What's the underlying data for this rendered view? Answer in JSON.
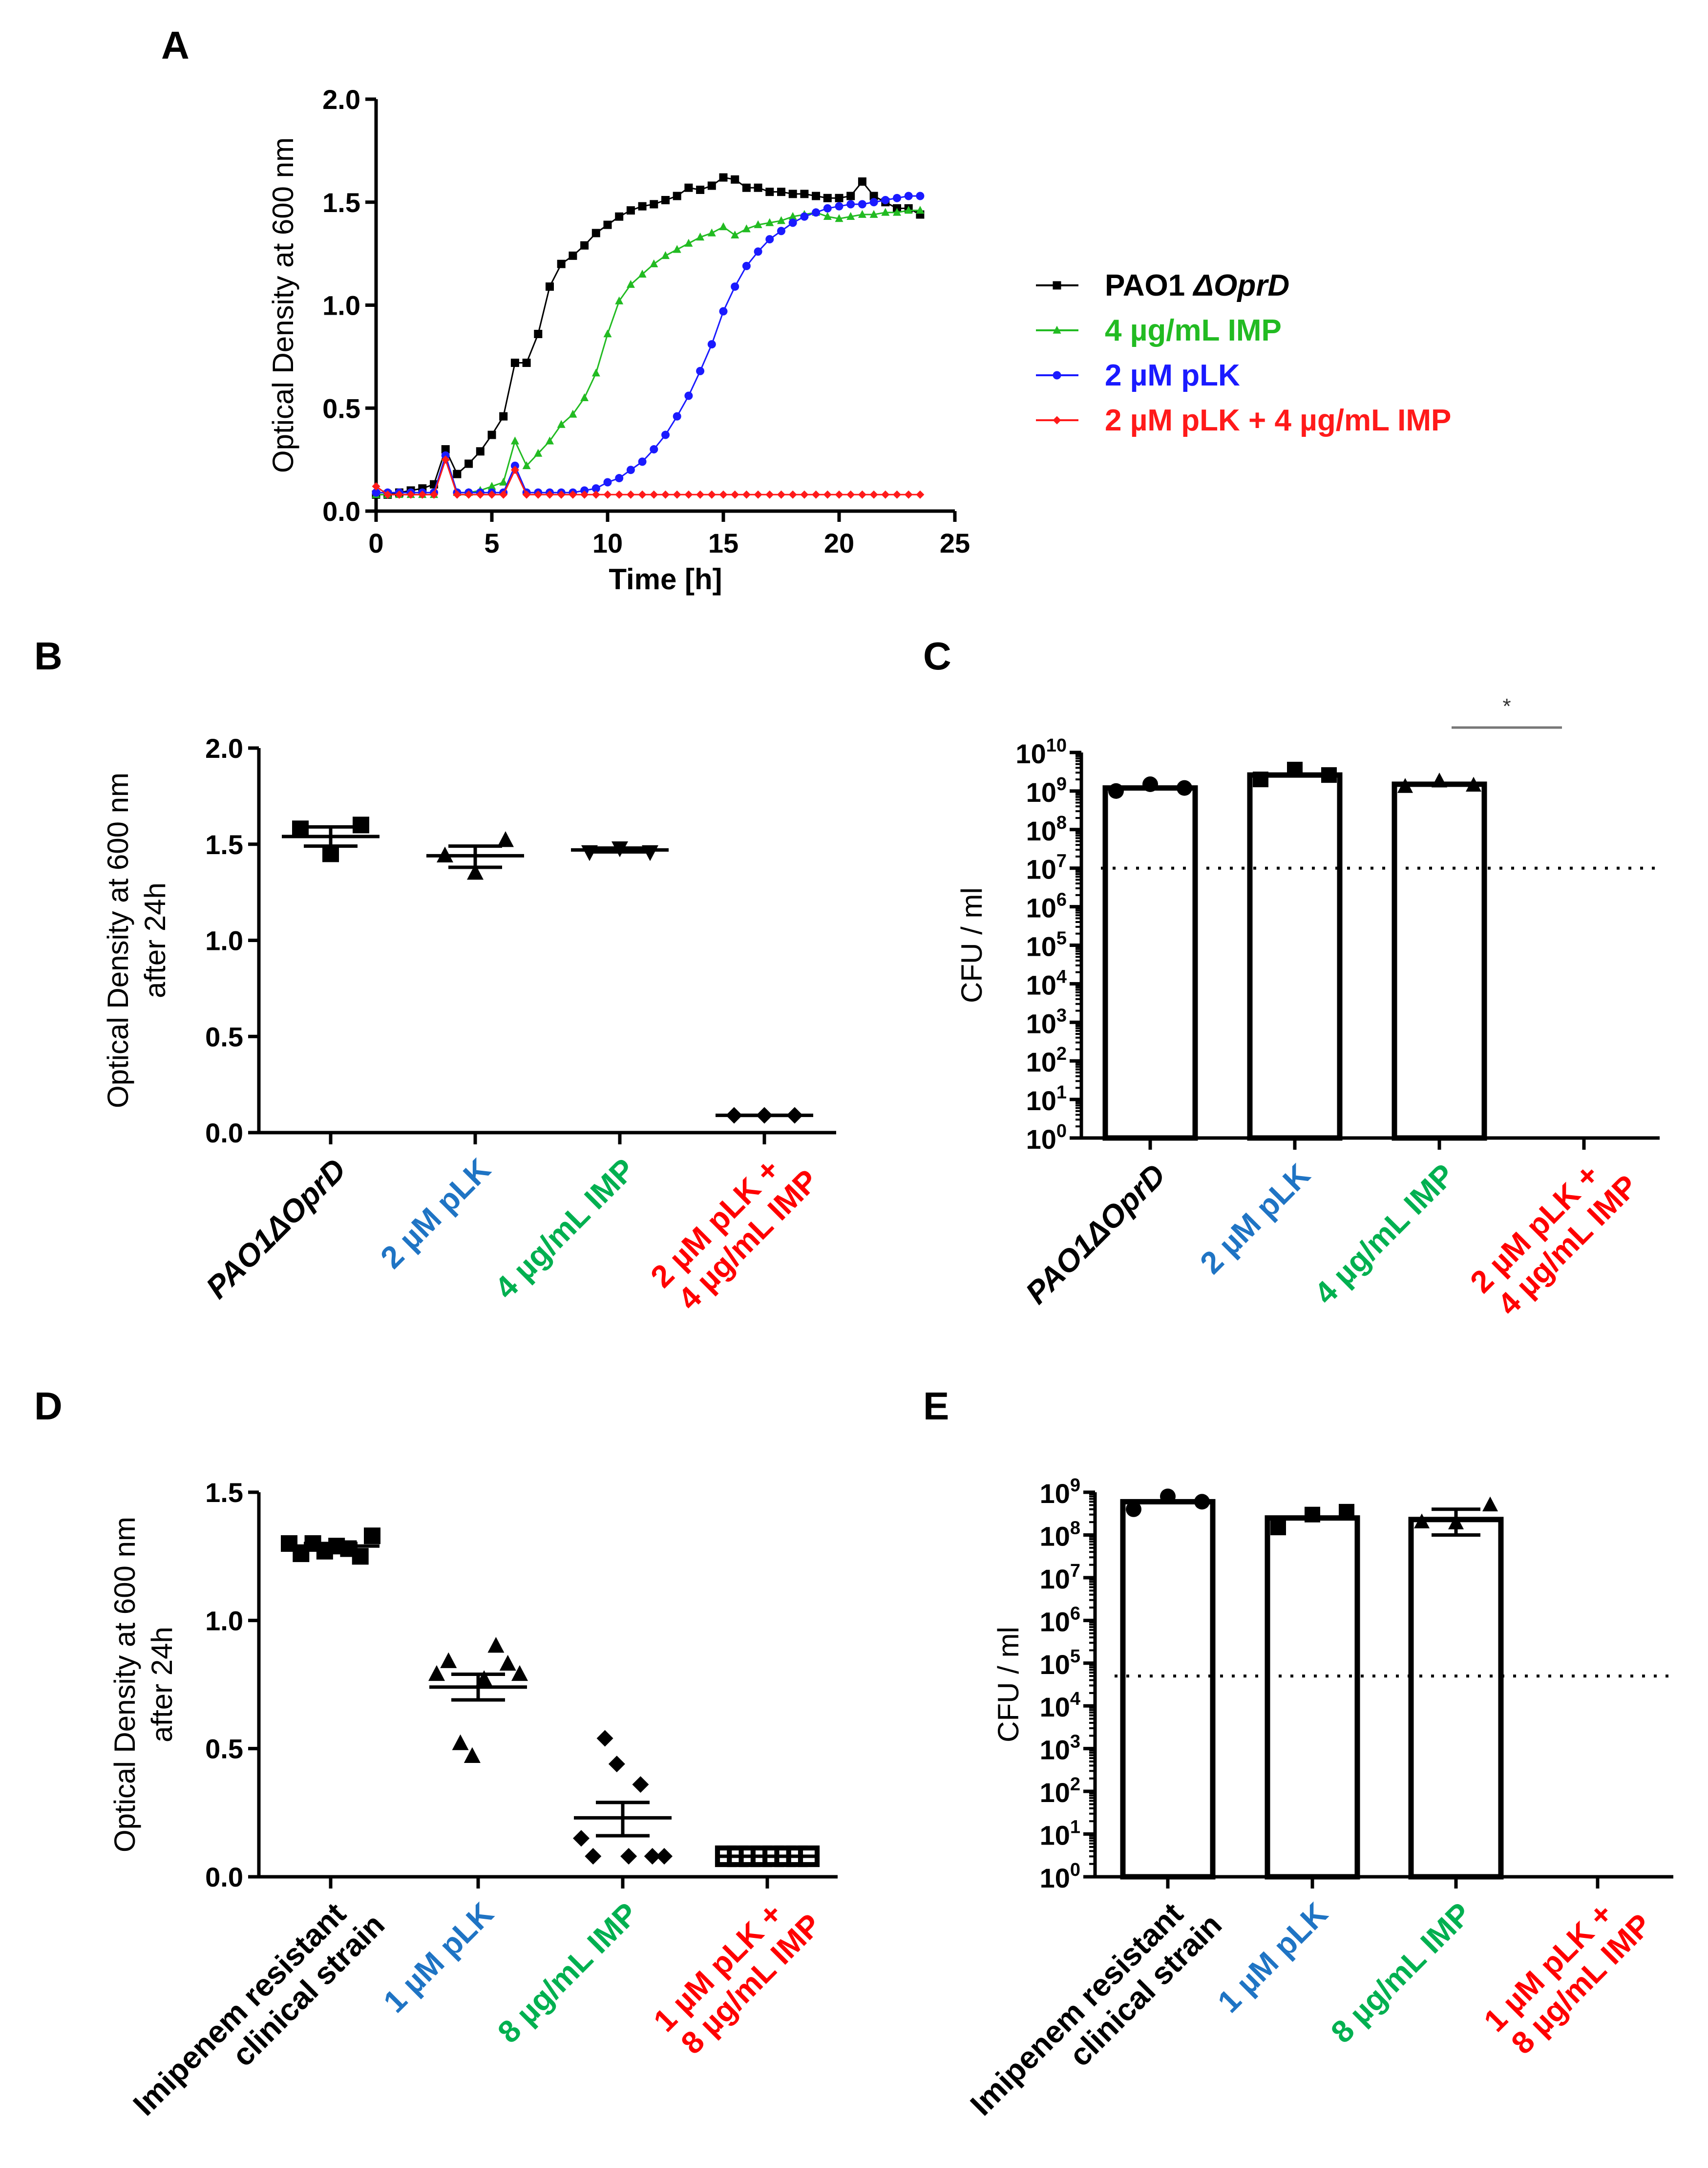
{
  "chart_data": [
    {
      "panel_label": "A",
      "type": "line",
      "title": "",
      "xlabel": "Time [h]",
      "ylabel": "Optical Density at 600 nm",
      "xlim": [
        0,
        25
      ],
      "ylim": [
        0,
        2.0
      ],
      "xticks": [
        "0",
        "5",
        "10",
        "15",
        "20",
        "25"
      ],
      "yticks": [
        "0.0",
        "0.5",
        "1.0",
        "1.5",
        "2.0"
      ],
      "legend_placement": "right",
      "x": [
        0,
        0.5,
        1,
        1.5,
        2,
        2.5,
        3,
        3.5,
        4,
        4.5,
        5,
        5.5,
        6,
        6.5,
        7,
        7.5,
        8,
        8.5,
        9,
        9.5,
        10,
        10.5,
        11,
        11.5,
        12,
        12.5,
        13,
        13.5,
        14,
        14.5,
        15,
        15.5,
        16,
        16.5,
        17,
        17.5,
        18,
        18.5,
        19,
        19.5,
        20,
        20.5,
        21,
        21.5,
        22,
        22.5,
        23,
        23.5
      ],
      "series": [
        {
          "name": "PAO1 ",
          "name_italic": "ΔOprD",
          "color": "#000000",
          "marker": "square",
          "values": [
            0.08,
            0.08,
            0.09,
            0.1,
            0.11,
            0.13,
            0.3,
            0.18,
            0.23,
            0.29,
            0.37,
            0.46,
            0.72,
            0.72,
            0.86,
            1.09,
            1.2,
            1.24,
            1.29,
            1.35,
            1.39,
            1.43,
            1.46,
            1.48,
            1.49,
            1.51,
            1.53,
            1.57,
            1.56,
            1.58,
            1.62,
            1.61,
            1.57,
            1.57,
            1.55,
            1.55,
            1.54,
            1.54,
            1.53,
            1.52,
            1.52,
            1.53,
            1.6,
            1.53,
            1.5,
            1.47,
            1.47,
            1.44
          ]
        },
        {
          "name": "4 µg/mL IMP",
          "color": "#22bb22",
          "marker": "triangle",
          "values": [
            0.08,
            0.08,
            0.08,
            0.08,
            0.08,
            0.08,
            0.26,
            0.09,
            0.09,
            0.1,
            0.12,
            0.14,
            0.34,
            0.22,
            0.28,
            0.34,
            0.42,
            0.47,
            0.55,
            0.67,
            0.86,
            1.02,
            1.1,
            1.15,
            1.2,
            1.24,
            1.27,
            1.3,
            1.33,
            1.35,
            1.38,
            1.34,
            1.37,
            1.39,
            1.4,
            1.41,
            1.43,
            1.44,
            1.45,
            1.43,
            1.42,
            1.43,
            1.44,
            1.44,
            1.45,
            1.45,
            1.46,
            1.46
          ]
        },
        {
          "name": "2 µM pLK",
          "color": "#1a1aff",
          "marker": "circle",
          "values": [
            0.09,
            0.09,
            0.09,
            0.09,
            0.09,
            0.09,
            0.27,
            0.09,
            0.09,
            0.09,
            0.09,
            0.09,
            0.22,
            0.09,
            0.09,
            0.09,
            0.09,
            0.09,
            0.1,
            0.11,
            0.14,
            0.16,
            0.2,
            0.24,
            0.3,
            0.37,
            0.46,
            0.56,
            0.68,
            0.81,
            0.97,
            1.09,
            1.19,
            1.26,
            1.32,
            1.36,
            1.4,
            1.43,
            1.45,
            1.47,
            1.48,
            1.49,
            1.49,
            1.5,
            1.51,
            1.52,
            1.53,
            1.53
          ]
        },
        {
          "name": "2 µM pLK + 4 µg/mL IMP",
          "color": "#ff1a1a",
          "marker": "diamond",
          "values": [
            0.12,
            0.08,
            0.08,
            0.08,
            0.08,
            0.08,
            0.25,
            0.08,
            0.08,
            0.08,
            0.08,
            0.08,
            0.2,
            0.08,
            0.08,
            0.08,
            0.08,
            0.08,
            0.08,
            0.08,
            0.08,
            0.08,
            0.08,
            0.08,
            0.08,
            0.08,
            0.08,
            0.08,
            0.08,
            0.08,
            0.08,
            0.08,
            0.08,
            0.08,
            0.08,
            0.08,
            0.08,
            0.08,
            0.08,
            0.08,
            0.08,
            0.08,
            0.08,
            0.08,
            0.08,
            0.08,
            0.08,
            0.08
          ]
        }
      ]
    },
    {
      "panel_label": "B",
      "type": "scatter",
      "ylabel": [
        "Optical Density at 600 nm",
        "after 24h"
      ],
      "ylim": [
        0,
        2.0
      ],
      "yticks": [
        "0.0",
        "0.5",
        "1.0",
        "1.5",
        "2.0"
      ],
      "scale": "linear",
      "groups": [
        {
          "label": [
            "PAO1ΔOprD"
          ],
          "italic": true,
          "color": "#000000",
          "marker": "square",
          "points": [
            1.58,
            1.45,
            1.6
          ],
          "mean": 1.54,
          "sem": [
            1.49,
            1.59
          ]
        },
        {
          "label": [
            "2 µM pLK"
          ],
          "color": "#1f74c4",
          "marker": "triangle",
          "points": [
            1.44,
            1.35,
            1.52
          ],
          "mean": 1.44,
          "sem": [
            1.38,
            1.49
          ]
        },
        {
          "label": [
            "4 µg/mL IMP"
          ],
          "color": "#00b050",
          "marker": "triangle-down",
          "points": [
            1.46,
            1.48,
            1.46
          ],
          "mean": 1.47,
          "sem": [
            1.46,
            1.48
          ]
        },
        {
          "label": [
            "2 µM pLK +",
            "4 µg/mL IMP"
          ],
          "color": "#ff0000",
          "marker": "diamond",
          "points": [
            0.09,
            0.09,
            0.09
          ],
          "mean": 0.09,
          "sem": [
            0.09,
            0.09
          ]
        }
      ]
    },
    {
      "panel_label": "C",
      "type": "bar",
      "ylabel": [
        "CFU / ml"
      ],
      "scale": "log",
      "ylim": [
        1,
        10000000000.0
      ],
      "ytick_exponents": [
        0,
        1,
        2,
        3,
        4,
        5,
        6,
        7,
        8,
        9,
        10
      ],
      "ytick_base": "10",
      "detection_limit": 10000000.0,
      "significance": {
        "label": "*",
        "between": [
          2,
          3
        ]
      },
      "groups": [
        {
          "label": [
            "PAO1ΔOprD"
          ],
          "italic": true,
          "color": "#000000",
          "marker": "circle",
          "bar": 1200000000.0,
          "points": [
            1000000000.0,
            1500000000.0,
            1200000000.0
          ]
        },
        {
          "label": [
            "2 µM pLK"
          ],
          "color": "#1f74c4",
          "marker": "square",
          "bar": 2600000000.0,
          "points": [
            2000000000.0,
            3600000000.0,
            2600000000.0
          ]
        },
        {
          "label": [
            "4 µg/mL IMP"
          ],
          "color": "#00b050",
          "marker": "triangle",
          "bar": 1500000000.0,
          "points": [
            1300000000.0,
            1800000000.0,
            1400000000.0
          ]
        },
        {
          "label": [
            "2 µM pLK +",
            "4 µg/mL IMP"
          ],
          "color": "#ff0000",
          "marker": "none",
          "bar": null,
          "points": []
        }
      ]
    },
    {
      "panel_label": "D",
      "type": "scatter",
      "ylabel": [
        "Optical Density at 600 nm",
        "after 24h"
      ],
      "ylim": [
        0,
        1.5
      ],
      "yticks": [
        "0.0",
        "0.5",
        "1.0",
        "1.5"
      ],
      "scale": "linear",
      "groups": [
        {
          "label": [
            "Imipenem resistant",
            "clinical strain"
          ],
          "color": "#000000",
          "marker": "square",
          "points": [
            1.3,
            1.26,
            1.3,
            1.27,
            1.29,
            1.28,
            1.25,
            1.33
          ],
          "mean": 1.29,
          "sem": [
            1.28,
            1.3
          ]
        },
        {
          "label": [
            "1 µM pLK"
          ],
          "color": "#1f74c4",
          "marker": "triangle",
          "points": [
            0.79,
            0.84,
            0.52,
            0.47,
            0.77,
            0.9,
            0.83,
            0.79
          ],
          "mean": 0.74,
          "sem": [
            0.69,
            0.79
          ]
        },
        {
          "label": [
            "8 µg/mL IMP"
          ],
          "color": "#00b050",
          "marker": "diamond",
          "points": [
            0.15,
            0.08,
            0.54,
            0.44,
            0.08,
            0.36,
            0.08,
            0.08
          ],
          "mean": 0.23,
          "sem": [
            0.16,
            0.29
          ]
        },
        {
          "label": [
            "1 µM pLK +",
            "8 µg/mL IMP"
          ],
          "color": "#ff0000",
          "marker": "square-open",
          "points": [
            0.08,
            0.08,
            0.08,
            0.08,
            0.08,
            0.08,
            0.08,
            0.08
          ],
          "mean": 0.08,
          "sem": [
            0.08,
            0.08
          ]
        }
      ]
    },
    {
      "panel_label": "E",
      "type": "bar",
      "ylabel": [
        "CFU / ml"
      ],
      "scale": "log",
      "ylim": [
        1,
        1000000000.0
      ],
      "ytick_exponents": [
        0,
        1,
        2,
        3,
        4,
        5,
        6,
        7,
        8,
        9
      ],
      "ytick_base": "10",
      "detection_limit": 50000.0,
      "groups": [
        {
          "label": [
            "Imipenem resistant",
            "clinical strain"
          ],
          "color": "#000000",
          "marker": "circle",
          "bar": 600000000.0,
          "points": [
            400000000.0,
            800000000.0,
            600000000.0
          ]
        },
        {
          "label": [
            "1 µM pLK"
          ],
          "color": "#1f74c4",
          "marker": "square",
          "bar": 250000000.0,
          "points": [
            150000000.0,
            300000000.0,
            350000000.0
          ]
        },
        {
          "label": [
            "8 µg/mL IMP"
          ],
          "color": "#00b050",
          "marker": "triangle",
          "bar": 230000000.0,
          "points": [
            200000000.0,
            190000000.0,
            500000000.0
          ],
          "sem": [
            100000000.0,
            400000000.0
          ]
        },
        {
          "label": [
            "1 µM pLK +",
            "8 µg/mL IMP"
          ],
          "color": "#ff0000",
          "marker": "none",
          "bar": null,
          "points": []
        }
      ]
    }
  ]
}
